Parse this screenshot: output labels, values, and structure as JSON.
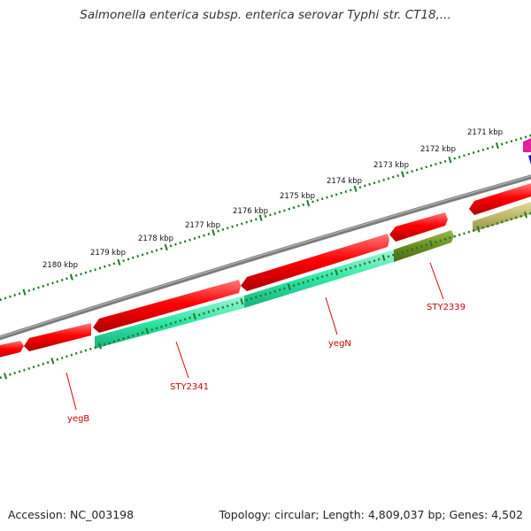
{
  "header": {
    "title": "Salmonella enterica subsp. enterica serovar Typhi str. CT18,..."
  },
  "footer": {
    "accession": "Accession: NC_003198",
    "summary": "Topology: circular; Length: 4,809,037 bp; Genes: 4,502"
  },
  "ruler": {
    "labels": [
      "2180 kbp",
      "2179 kbp",
      "2178 kbp",
      "2177 kbp",
      "2176 kbp",
      "2175 kbp",
      "2174 kbp",
      "2173 kbp",
      "2172 kbp",
      "2171 kbp"
    ]
  },
  "genes": {
    "labels": [
      "yegB",
      "STY2341",
      "yegN",
      "STY2339"
    ]
  },
  "colors": {
    "backbone": "#8a8a8a",
    "forward_cds": "#ff0000",
    "reverse_cds_teal": "#2ee6a6",
    "reverse_cds_olive": "#6b8e23",
    "reverse_cds_khaki": "#bdb76b",
    "ticks": "#1f7a1f",
    "label": "#d00000",
    "magenta": "#e0219a",
    "blue": "#1a1ab0"
  }
}
